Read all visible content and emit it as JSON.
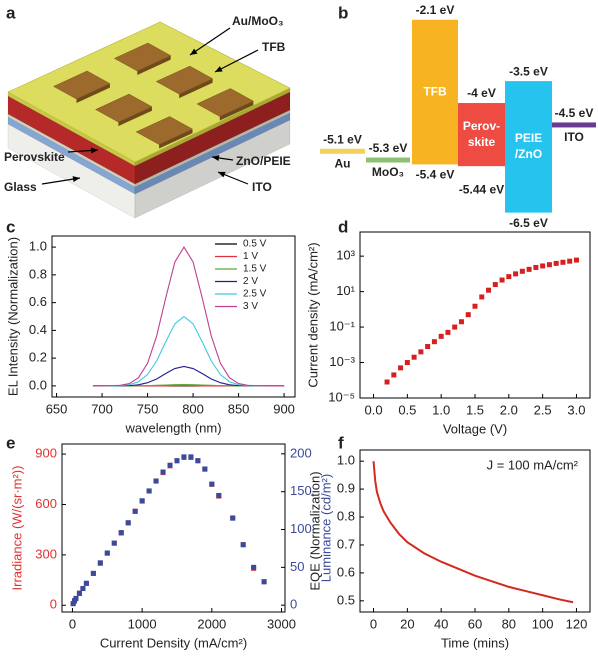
{
  "chart_data": [
    {
      "type": "schematic",
      "label": "a",
      "labels": [
        "Au/MoO₃",
        "TFB",
        "Perovskite",
        "ZnO/PEIE",
        "Glass",
        "ITO"
      ]
    },
    {
      "type": "energy-levels",
      "label": "b",
      "ylim": [
        -6.6,
        -1.9
      ],
      "layers": [
        {
          "name_lines": [
            "Au"
          ],
          "color": "#f2d15c",
          "values": [
            -5.1
          ],
          "value_labels": [
            "-5.1 eV"
          ]
        },
        {
          "name_lines": [
            "MoO₃"
          ],
          "color": "#8fbf72",
          "values": [
            -5.3
          ],
          "value_labels": [
            "-5.3 eV"
          ]
        },
        {
          "name_lines": [
            "TFB"
          ],
          "color": "#f8b323",
          "values": [
            -2.1,
            -5.4
          ],
          "value_labels": [
            "-2.1 eV",
            "-5.4 eV"
          ]
        },
        {
          "name_lines": [
            "Perov-",
            "skite"
          ],
          "color": "#ee4c43",
          "values": [
            -4,
            -5.44
          ],
          "value_labels": [
            "-4 eV",
            "-5.44 eV"
          ]
        },
        {
          "name_lines": [
            "PEIE",
            "/ZnO"
          ],
          "color": "#26c3ef",
          "values": [
            -3.5,
            -6.5
          ],
          "value_labels": [
            "-3.5 eV",
            "-6.5 eV"
          ]
        },
        {
          "name_lines": [
            "ITO"
          ],
          "color": "#6b3a93",
          "values": [
            -4.5
          ],
          "value_labels": [
            "-4.5 eV"
          ]
        }
      ]
    },
    {
      "type": "line",
      "label": "c",
      "xlabel": "wavelength (nm)",
      "ylabel": "EL Intensity (Normalization)",
      "x": [
        690,
        700,
        710,
        720,
        730,
        740,
        750,
        760,
        770,
        780,
        790,
        800,
        810,
        820,
        830,
        840,
        850,
        860,
        870,
        880,
        890,
        900
      ],
      "series": [
        {
          "name": "0.5 V",
          "color": "#000000",
          "values": [
            0,
            0,
            0,
            0,
            0,
            0,
            0,
            0,
            0,
            0,
            0,
            0,
            0,
            0,
            0,
            0,
            0,
            0,
            0,
            0,
            0,
            0
          ]
        },
        {
          "name": "1 V",
          "color": "#e0303a",
          "values": [
            0,
            0,
            0,
            0,
            0,
            0,
            0,
            0,
            0,
            0.001,
            0.002,
            0.001,
            0,
            0,
            0,
            0,
            0,
            0,
            0,
            0,
            0,
            0
          ]
        },
        {
          "name": "1.5 V",
          "color": "#5fa83a",
          "values": [
            0,
            0,
            0,
            0,
            0,
            0.001,
            0.002,
            0.004,
            0.006,
            0.009,
            0.01,
            0.009,
            0.006,
            0.004,
            0.002,
            0.001,
            0,
            0,
            0,
            0,
            0,
            0
          ]
        },
        {
          "name": "2 V",
          "color": "#1f1f8f",
          "values": [
            0,
            0,
            0,
            0.001,
            0.002,
            0.008,
            0.023,
            0.05,
            0.089,
            0.125,
            0.14,
            0.125,
            0.089,
            0.05,
            0.023,
            0.008,
            0.002,
            0.001,
            0,
            0,
            0,
            0
          ]
        },
        {
          "name": "2.5 V",
          "color": "#40c8e0",
          "values": [
            0,
            0,
            0,
            0.002,
            0.009,
            0.03,
            0.082,
            0.18,
            0.318,
            0.447,
            0.5,
            0.447,
            0.318,
            0.18,
            0.082,
            0.03,
            0.009,
            0.002,
            0,
            0,
            0,
            0
          ]
        },
        {
          "name": "3 V",
          "color": "#c0408f",
          "values": [
            0,
            0,
            0.001,
            0.004,
            0.017,
            0.059,
            0.163,
            0.36,
            0.635,
            0.893,
            1,
            0.893,
            0.635,
            0.36,
            0.163,
            0.059,
            0.017,
            0.004,
            0.001,
            0,
            0,
            0
          ]
        }
      ],
      "xlim": [
        645,
        912
      ],
      "ylim": [
        -0.08,
        1.08
      ],
      "xticks": [
        650,
        700,
        750,
        800,
        850,
        900
      ],
      "yticks": [
        {
          "value": 0,
          "label": "0.0"
        },
        0.2,
        0.4,
        0.6,
        0.8,
        {
          "value": 1,
          "label": "1.0"
        }
      ],
      "legend": "upper right"
    },
    {
      "type": "scatter",
      "label": "d",
      "xlabel": "Voltage (V)",
      "ylabel": "Current density (mA/cm²)",
      "log_y": true,
      "x": [
        0.2,
        0.3,
        0.4,
        0.5,
        0.6,
        0.7,
        0.8,
        0.9,
        1.0,
        1.1,
        1.2,
        1.3,
        1.4,
        1.5,
        1.6,
        1.7,
        1.8,
        1.9,
        2.0,
        2.1,
        2.2,
        2.3,
        2.4,
        2.5,
        2.6,
        2.7,
        2.8,
        2.9,
        3.0
      ],
      "series": [
        {
          "color": "#d62020",
          "values": [
            8e-05,
            0.0002,
            0.0005,
            0.001,
            0.002,
            0.004,
            0.008,
            0.015,
            0.03,
            0.05,
            0.1,
            0.2,
            0.5,
            1.5,
            5,
            12,
            25,
            45,
            70,
            100,
            140,
            180,
            230,
            280,
            330,
            390,
            450,
            520,
            600
          ]
        }
      ],
      "xlim": [
        -0.2,
        3.2
      ],
      "ylim": [
        1e-05,
        23000
      ],
      "xticks": [
        {
          "value": 0,
          "label": "0.0"
        },
        0.5,
        {
          "value": 1,
          "label": "1.0"
        },
        1.5,
        {
          "value": 2,
          "label": "2.0"
        },
        2.5,
        {
          "value": 3,
          "label": "3.0"
        }
      ],
      "yticks": [
        {
          "value": 1e-05,
          "label": "10⁻⁵"
        },
        {
          "value": 0.001,
          "label": "10⁻³"
        },
        {
          "value": 0.1,
          "label": "10⁻¹"
        },
        {
          "value": 10,
          "label": "10¹"
        },
        {
          "value": 1000,
          "label": "10³"
        }
      ]
    },
    {
      "type": "scatter",
      "label": "e",
      "xlabel": "Current Density (mA/cm²)",
      "ylabel": "Irradiance (W/(sr·m²))",
      "y2label": "Luminance (cd/m²)",
      "x": [
        10,
        30,
        50,
        100,
        150,
        200,
        300,
        400,
        500,
        600,
        700,
        800,
        900,
        1000,
        1100,
        1200,
        1300,
        1400,
        1500,
        1600,
        1700,
        1800,
        1900,
        2000,
        2100,
        2300,
        2450,
        2600,
        2750
      ],
      "series": [
        {
          "color": "#e0322f",
          "values": [
            10,
            25,
            40,
            70,
            100,
            130,
            190,
            250,
            310,
            370,
            430,
            490,
            560,
            620,
            680,
            740,
            790,
            830,
            860,
            880,
            880,
            860,
            810,
            720,
            650,
            520,
            360,
            220,
            140
          ]
        },
        {
          "color": "#3a4a9c",
          "axis": "y2",
          "values": [
            2,
            6,
            9,
            16,
            22,
            29,
            42,
            56,
            69,
            82,
            96,
            109,
            124,
            138,
            151,
            164,
            176,
            185,
            191,
            196,
            196,
            191,
            180,
            160,
            145,
            115,
            80,
            50,
            31
          ]
        }
      ],
      "xlim": [
        -150,
        3050
      ],
      "ylim": [
        -40,
        960
      ],
      "y2lim": [
        -9,
        213
      ],
      "xticks": [
        0,
        1000,
        2000,
        3000
      ],
      "yticks": [
        0,
        300,
        600,
        900
      ],
      "y2ticks": [
        0,
        50,
        100,
        150,
        200
      ]
    },
    {
      "type": "line",
      "label": "f",
      "xlabel": "Time (mins)",
      "ylabel": "EQE (Normalization)",
      "annotation": "J = 100 mA/cm²",
      "x": [
        0,
        1,
        2,
        4,
        6,
        8,
        10,
        15,
        20,
        30,
        40,
        50,
        60,
        70,
        80,
        90,
        100,
        110,
        118
      ],
      "series": [
        {
          "color": "#d42a1e",
          "values": [
            1.0,
            0.93,
            0.89,
            0.85,
            0.82,
            0.8,
            0.78,
            0.74,
            0.71,
            0.67,
            0.64,
            0.615,
            0.59,
            0.57,
            0.55,
            0.535,
            0.52,
            0.505,
            0.495
          ]
        }
      ],
      "xlim": [
        -8,
        128
      ],
      "ylim": [
        0.46,
        1.04
      ],
      "xticks": [
        0,
        20,
        40,
        60,
        80,
        100,
        120
      ],
      "yticks": [
        0.5,
        0.6,
        0.7,
        0.8,
        0.9,
        {
          "value": 1,
          "label": "1.0"
        }
      ]
    }
  ]
}
